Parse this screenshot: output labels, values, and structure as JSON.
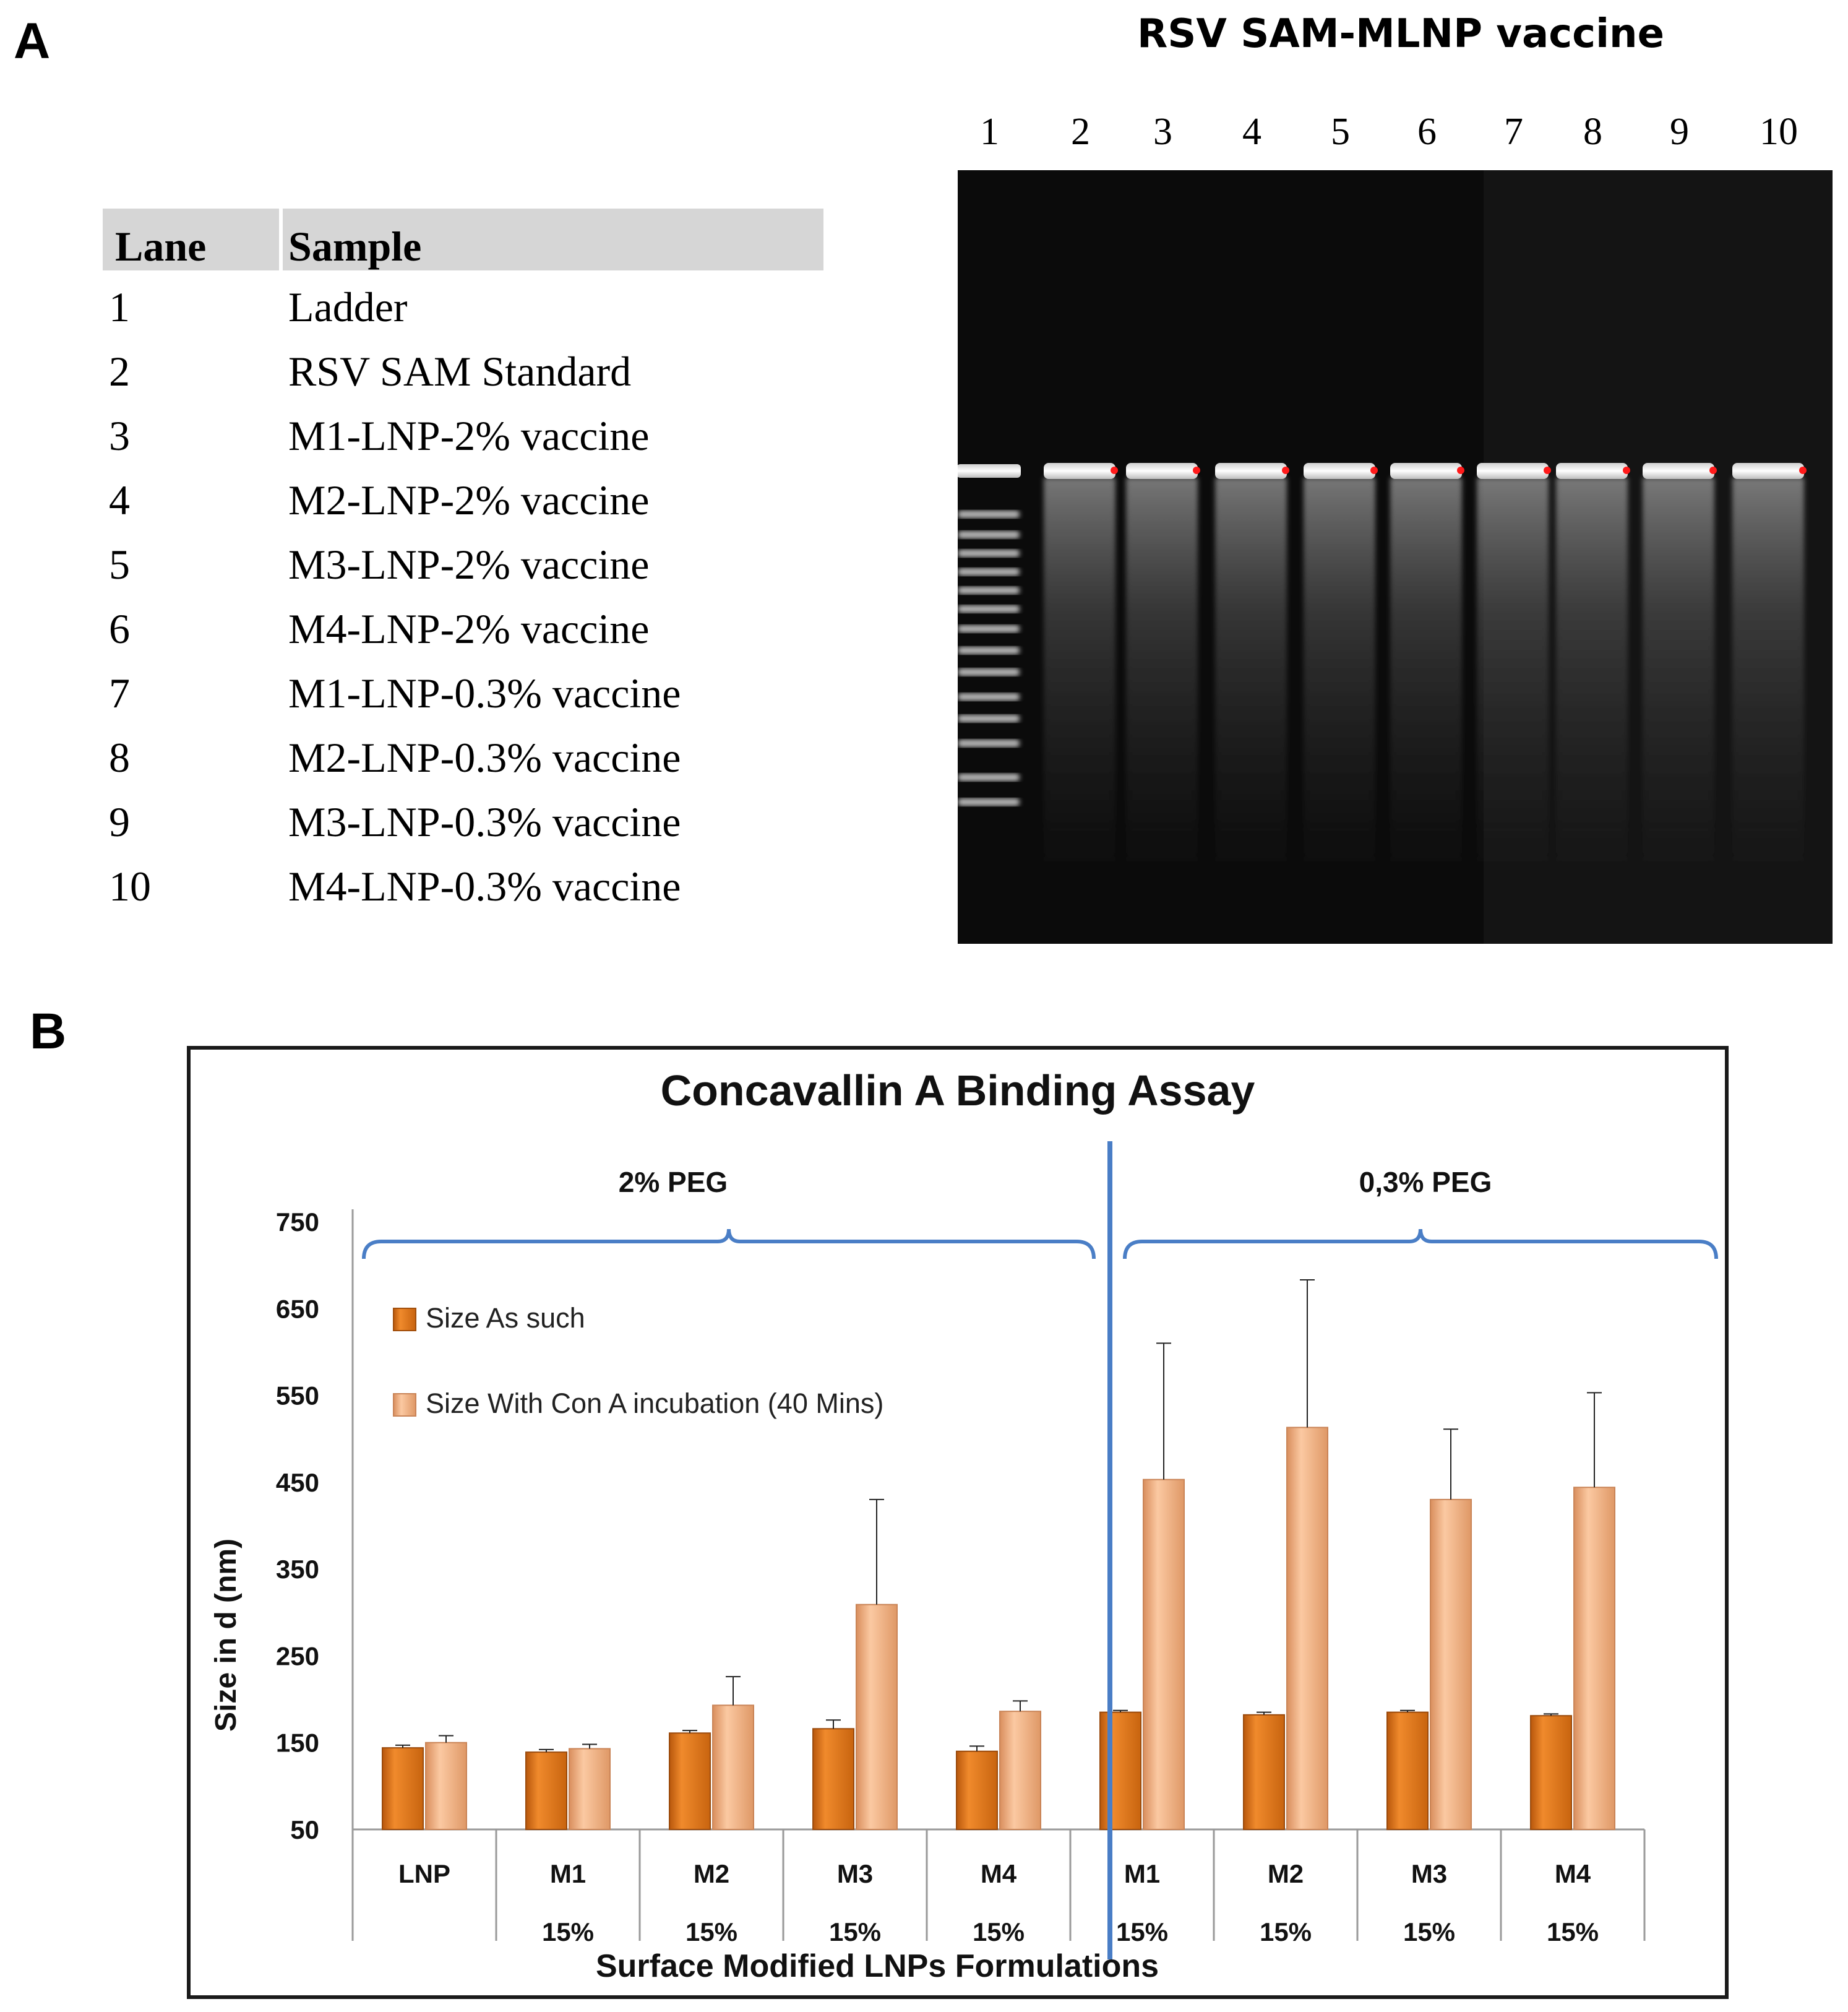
{
  "panels": {
    "a": "A",
    "b": "B"
  },
  "gel": {
    "title": "RSV SAM-MLNP vaccine",
    "lane_numbers": [
      "1",
      "2",
      "3",
      "4",
      "5",
      "6",
      "7",
      "8",
      "9",
      "10"
    ]
  },
  "table": {
    "headers": {
      "lane": "Lane",
      "sample": "Sample"
    },
    "rows": [
      {
        "lane": "1",
        "sample": "Ladder"
      },
      {
        "lane": "2",
        "sample": "RSV SAM Standard"
      },
      {
        "lane": "3",
        "sample": "M1-LNP-2% vaccine"
      },
      {
        "lane": "4",
        "sample": "M2-LNP-2% vaccine"
      },
      {
        "lane": "5",
        "sample": "M3-LNP-2% vaccine"
      },
      {
        "lane": "6",
        "sample": "M4-LNP-2% vaccine"
      },
      {
        "lane": "7",
        "sample": "M1-LNP-0.3% vaccine"
      },
      {
        "lane": "8",
        "sample": "M2-LNP-0.3% vaccine"
      },
      {
        "lane": "9",
        "sample": "M3-LNP-0.3% vaccine"
      },
      {
        "lane": "10",
        "sample": "M4-LNP-0.3% vaccine"
      }
    ]
  },
  "chart_data": {
    "type": "bar",
    "title": "Concavallin A Binding Assay",
    "xlabel": "Surface Modified LNPs Formulations",
    "ylabel": "Size in d (nm)",
    "ylim": [
      50,
      750
    ],
    "yticks": [
      "50",
      "150",
      "250",
      "350",
      "450",
      "550",
      "650",
      "750"
    ],
    "categories": [
      "LNP",
      "M1",
      "M2",
      "M3",
      "M4",
      "M1",
      "M2",
      "M3",
      "M4"
    ],
    "category_sublabels": [
      "",
      "15%",
      "15%",
      "15%",
      "15%",
      "15%",
      "15%",
      "15%",
      "15%"
    ],
    "groups": [
      {
        "label": "2% PEG",
        "categories": [
          0,
          1,
          2,
          3,
          4
        ]
      },
      {
        "label": "0,3% PEG",
        "categories": [
          5,
          6,
          7,
          8
        ]
      }
    ],
    "series": [
      {
        "name": "Size As such",
        "color": "#e07b1a",
        "values": [
          144,
          139,
          161,
          166,
          140,
          185,
          182,
          185,
          181
        ],
        "errors": [
          3,
          3,
          3,
          10,
          6,
          2,
          3,
          2,
          2
        ]
      },
      {
        "name": "Size With Con A incubation (40 Mins)",
        "color": "#f5b589",
        "values": [
          150,
          143,
          193,
          309,
          186,
          453,
          513,
          430,
          444
        ],
        "errors": [
          8,
          5,
          33,
          121,
          12,
          157,
          170,
          81,
          109
        ]
      }
    ],
    "legend_position": "top-left",
    "grid": false
  }
}
